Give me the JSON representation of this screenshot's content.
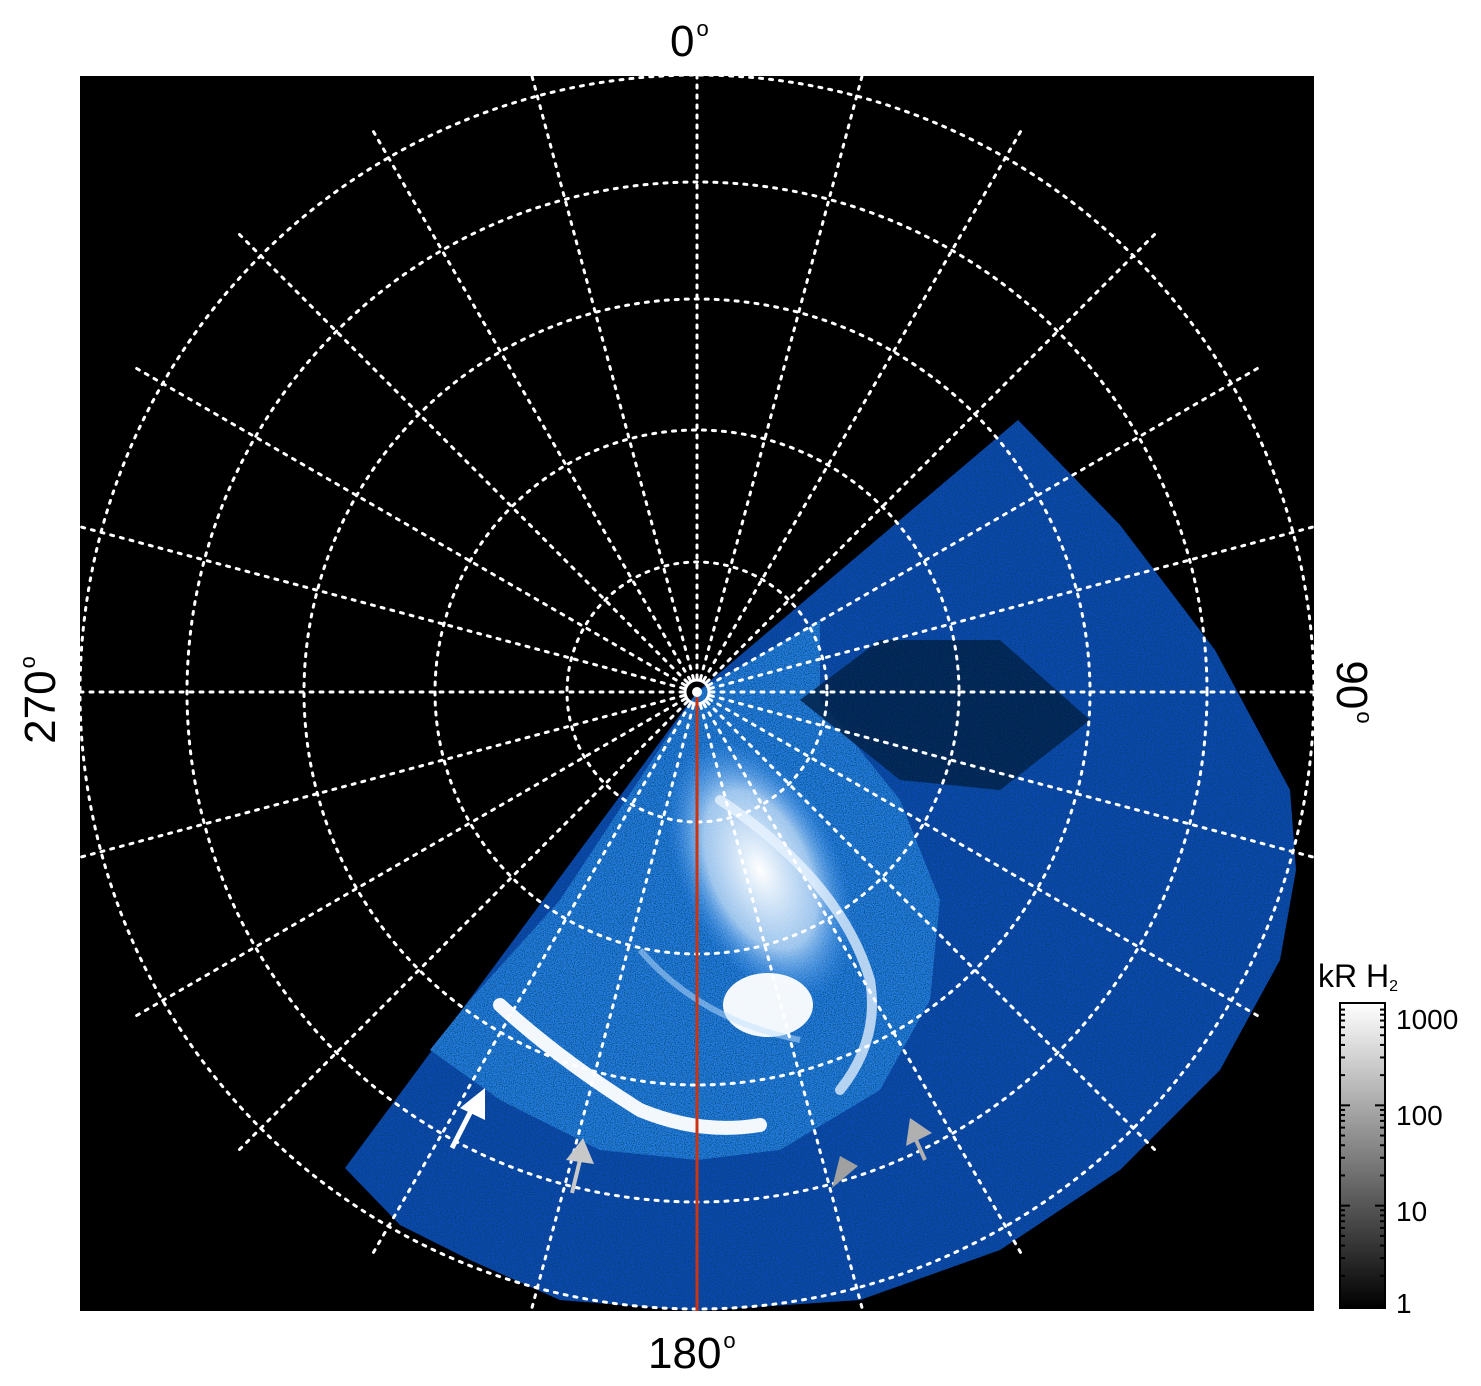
{
  "figure": {
    "azimuth_labels": {
      "top": "0",
      "right": "90",
      "bottom": "180",
      "left": "270",
      "degree_sign": "o"
    },
    "grid": {
      "style": "dotted",
      "color": "#ffffff",
      "meridian_step_deg": 15,
      "parallel_rings": 5
    },
    "reference_line": {
      "color": "#cc3311",
      "azimuth_deg": 180
    },
    "colorbar": {
      "title": "kR H",
      "title_subscript": "2",
      "scale": "log",
      "range": [
        1,
        1000
      ],
      "tick_labels": [
        "1000",
        "100",
        "10",
        "1"
      ],
      "colors": [
        "#000000",
        "#ffffff"
      ]
    },
    "image_colors": {
      "background": "#000000",
      "emission_dim": "#0a3a9a",
      "emission_mid": "#1f7fe6",
      "emission_bright": "#ffffff"
    },
    "arrows": [
      {
        "color": "#ffffff"
      },
      {
        "color": "#c8c8c8"
      },
      {
        "color": "#a0a0a0"
      },
      {
        "color": "#b0b0b0"
      }
    ]
  }
}
